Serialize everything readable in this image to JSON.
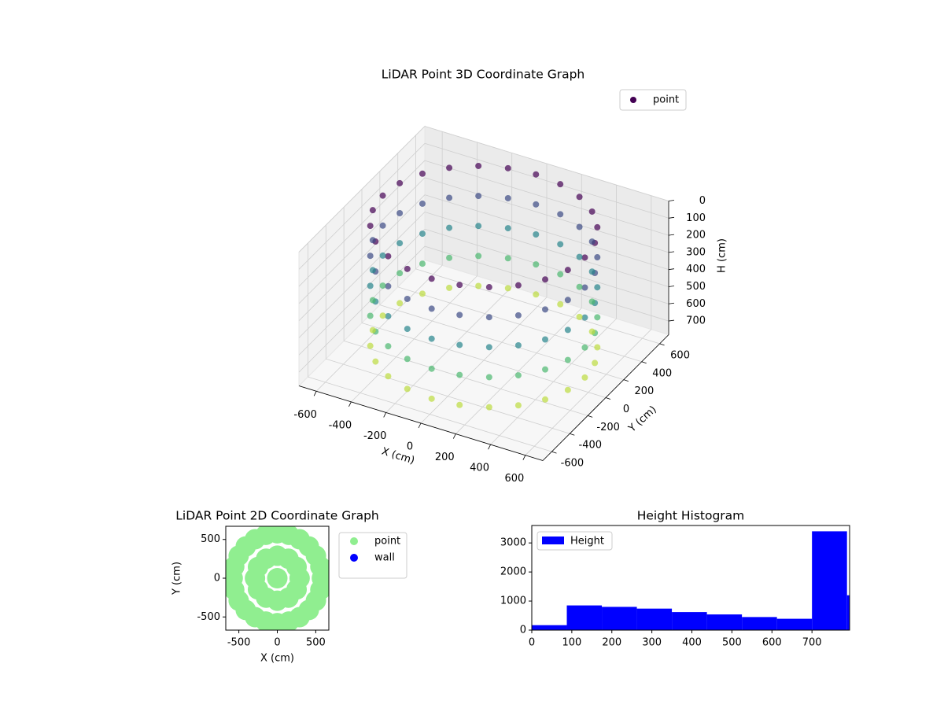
{
  "chart_data": [
    {
      "type": "scatter3d",
      "title": "LiDAR Point 3D Coordinate Graph",
      "xlabel": "X (cm)",
      "ylabel": "Y (cm)",
      "zlabel": "H (cm)",
      "xlim": [
        -700,
        700
      ],
      "ylim": [
        -700,
        700
      ],
      "zlim": [
        0,
        780
      ],
      "z_inverted": true,
      "xticks": [
        -600,
        -400,
        -200,
        0,
        200,
        400,
        600
      ],
      "yticks": [
        -600,
        -400,
        -200,
        0,
        200,
        400,
        600
      ],
      "zticks": [
        0,
        100,
        200,
        300,
        400,
        500,
        600,
        700
      ],
      "colormap": "viridis",
      "legend": "upper right",
      "series": [
        {
          "name": "point",
          "color": "#440154",
          "x": [
            580,
            560,
            502,
            410,
            290,
            150,
            0,
            -150,
            -290,
            -410,
            -502,
            -560,
            -580,
            -560,
            -502,
            -410,
            -290,
            -150,
            0,
            150,
            290,
            410,
            502,
            560,
            580,
            560,
            502,
            410,
            290,
            150,
            0,
            -150,
            -290,
            -410,
            -502,
            -560,
            -580,
            -560,
            -502,
            -410,
            -290,
            -150,
            0,
            150,
            290,
            410,
            502,
            560,
            580,
            560,
            502,
            410,
            290,
            150,
            0,
            -150,
            -290,
            -410,
            -502,
            -560,
            -580,
            -560,
            -502,
            -410,
            -290,
            -150,
            0,
            150,
            290,
            410,
            502,
            560,
            580,
            560,
            502,
            410,
            290,
            150,
            0,
            -150,
            -290,
            -410,
            -502,
            -560,
            -580,
            -560,
            -502,
            -410,
            -290,
            -150,
            0,
            150,
            290,
            410,
            502,
            560,
            580,
            560,
            502,
            410,
            290,
            150,
            0,
            -150,
            -290,
            -410,
            -502,
            -560,
            -580,
            -560,
            -502,
            -410,
            -290,
            -150,
            0,
            150,
            290,
            410,
            502,
            560
          ],
          "y": [
            0,
            150,
            290,
            410,
            502,
            560,
            580,
            560,
            502,
            410,
            290,
            150,
            0,
            -150,
            -290,
            -410,
            -502,
            -560,
            -580,
            -560,
            -502,
            -410,
            -290,
            -150,
            0,
            150,
            290,
            410,
            502,
            560,
            580,
            560,
            502,
            410,
            290,
            150,
            0,
            -150,
            -290,
            -410,
            -502,
            -560,
            -580,
            -560,
            -502,
            -410,
            -290,
            -150,
            0,
            150,
            290,
            410,
            502,
            560,
            580,
            560,
            502,
            410,
            290,
            150,
            0,
            -150,
            -290,
            -410,
            -502,
            -560,
            -580,
            -560,
            -502,
            -410,
            -290,
            -150,
            0,
            150,
            290,
            410,
            502,
            560,
            580,
            560,
            502,
            410,
            290,
            150,
            0,
            -150,
            -290,
            -410,
            -502,
            -560,
            -580,
            -560,
            -502,
            -410,
            -290,
            -150,
            0,
            150,
            290,
            410,
            502,
            560,
            580,
            560,
            502,
            410,
            290,
            150,
            0,
            -150,
            -290,
            -410,
            -502,
            -560,
            -580,
            -560,
            -502,
            -410,
            -290,
            -150
          ],
          "z": [
            0,
            0,
            0,
            0,
            0,
            0,
            0,
            0,
            0,
            0,
            0,
            0,
            0,
            0,
            0,
            0,
            0,
            0,
            0,
            0,
            0,
            0,
            0,
            0,
            175,
            175,
            175,
            175,
            175,
            175,
            175,
            175,
            175,
            175,
            175,
            175,
            175,
            175,
            175,
            175,
            175,
            175,
            175,
            175,
            175,
            175,
            175,
            175,
            350,
            350,
            350,
            350,
            350,
            350,
            350,
            350,
            350,
            350,
            350,
            350,
            350,
            350,
            350,
            350,
            350,
            350,
            350,
            350,
            350,
            350,
            350,
            350,
            525,
            525,
            525,
            525,
            525,
            525,
            525,
            525,
            525,
            525,
            525,
            525,
            525,
            525,
            525,
            525,
            525,
            525,
            525,
            525,
            525,
            525,
            525,
            525,
            700,
            700,
            700,
            700,
            700,
            700,
            700,
            700,
            700,
            700,
            700,
            700,
            700,
            700,
            700,
            700,
            700,
            700,
            700,
            700,
            700,
            700,
            700,
            700
          ]
        }
      ]
    },
    {
      "type": "scatter",
      "title": "LiDAR Point 2D Coordinate Graph",
      "xlabel": "X (cm)",
      "ylabel": "Y (cm)",
      "xlim": [
        -670,
        670
      ],
      "ylim": [
        -670,
        670
      ],
      "xticks": [
        -500,
        0,
        500
      ],
      "yticks": [
        -500,
        0,
        500
      ],
      "legend": "outside upper right",
      "series": [
        {
          "name": "point",
          "color": "#90ee90",
          "x": [
            580,
            560,
            502,
            410,
            290,
            150,
            0,
            -150,
            -290,
            -410,
            -502,
            -560,
            -580,
            -560,
            -502,
            -410,
            -290,
            -150,
            0,
            150,
            290,
            410,
            502,
            560,
            290,
            251,
            145,
            0,
            -145,
            -251,
            -290,
            -251,
            -145,
            0,
            145,
            251,
            0
          ],
          "y": [
            0,
            150,
            290,
            410,
            502,
            560,
            580,
            560,
            502,
            410,
            290,
            150,
            0,
            -150,
            -290,
            -410,
            -502,
            -560,
            -580,
            -560,
            -502,
            -410,
            -290,
            -150,
            0,
            145,
            251,
            290,
            251,
            145,
            0,
            -145,
            -251,
            -290,
            -251,
            -145,
            0
          ]
        },
        {
          "name": "wall",
          "color": "#0000ff",
          "x": [],
          "y": []
        }
      ]
    },
    {
      "type": "histogram",
      "title": "Height Histogram",
      "bins": [
        0,
        87.5,
        175,
        262.5,
        350,
        437.5,
        525,
        612.5,
        700,
        787.5,
        875
      ],
      "series": [
        {
          "name": "Height",
          "color": "#0000ff",
          "values": [
            170,
            850,
            800,
            740,
            620,
            540,
            450,
            390,
            3400,
            1200
          ]
        }
      ],
      "xlim": [
        0,
        794
      ],
      "ylim": [
        0,
        3600
      ],
      "xticks": [
        0,
        100,
        200,
        300,
        400,
        500,
        600,
        700
      ],
      "yticks": [
        0,
        1000,
        2000,
        3000
      ],
      "legend": "upper left"
    }
  ]
}
